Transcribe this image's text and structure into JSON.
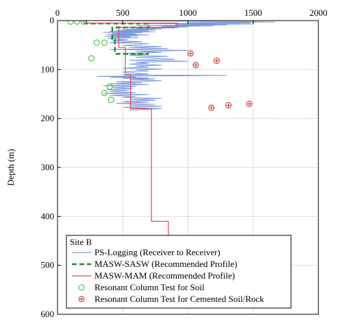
{
  "chart_data": {
    "type": "line",
    "title": "",
    "xlabel": "",
    "ylabel": "Depth (m)",
    "xlim": [
      0,
      2000
    ],
    "ylim": [
      0,
      600
    ],
    "y_inverted": true,
    "x_axis_position": "top",
    "xticks": [
      0,
      500,
      1000,
      1500,
      2000
    ],
    "yticks": [
      0,
      100,
      200,
      300,
      400,
      500,
      600
    ],
    "grid": "dotted",
    "legend": {
      "placement": "bottom-left",
      "title": "Site B",
      "entries": [
        "PS-Logging (Receiver to Receiver)",
        "MASW-SASW (Recommended Profile)",
        "MASW-MAM (Recommended Profile)",
        "Resonant Column Test for Soil",
        "Resonant Column Test for Cemented Soil/Rock"
      ]
    },
    "series": [
      {
        "name": "PS-Logging (Receiver to Receiver)",
        "style": "line",
        "color": "#7B97E0",
        "points": [
          [
            300,
            0
          ],
          [
            900,
            1
          ],
          [
            1400,
            2
          ],
          [
            1670,
            3
          ],
          [
            1000,
            4
          ],
          [
            1480,
            5
          ],
          [
            700,
            6
          ],
          [
            1500,
            7
          ],
          [
            900,
            8
          ],
          [
            1300,
            9
          ],
          [
            600,
            10
          ],
          [
            1200,
            11
          ],
          [
            800,
            12
          ],
          [
            1000,
            13
          ],
          [
            550,
            14
          ],
          [
            900,
            15
          ],
          [
            600,
            16
          ],
          [
            800,
            17
          ],
          [
            500,
            18
          ],
          [
            750,
            19
          ],
          [
            450,
            20
          ],
          [
            700,
            21
          ],
          [
            400,
            22
          ],
          [
            750,
            23
          ],
          [
            350,
            24
          ],
          [
            650,
            25
          ],
          [
            420,
            26
          ],
          [
            600,
            27
          ],
          [
            380,
            28
          ],
          [
            700,
            29
          ],
          [
            420,
            30
          ],
          [
            620,
            31
          ],
          [
            360,
            32
          ],
          [
            560,
            33
          ],
          [
            400,
            34
          ],
          [
            620,
            35
          ],
          [
            380,
            37
          ],
          [
            540,
            39
          ],
          [
            420,
            41
          ],
          [
            650,
            43
          ],
          [
            400,
            45
          ],
          [
            700,
            47
          ],
          [
            600,
            49
          ],
          [
            500,
            51
          ],
          [
            800,
            53
          ],
          [
            550,
            55
          ],
          [
            850,
            57
          ],
          [
            400,
            59
          ],
          [
            1000,
            61
          ],
          [
            600,
            63
          ],
          [
            800,
            65
          ],
          [
            500,
            67
          ],
          [
            700,
            69
          ],
          [
            550,
            71
          ],
          [
            850,
            73
          ],
          [
            600,
            75
          ],
          [
            750,
            77
          ],
          [
            900,
            79
          ],
          [
            550,
            81
          ],
          [
            1000,
            83
          ],
          [
            600,
            85
          ],
          [
            700,
            87
          ],
          [
            550,
            89
          ],
          [
            800,
            91
          ],
          [
            600,
            93
          ],
          [
            700,
            95
          ],
          [
            500,
            97
          ],
          [
            800,
            99
          ],
          [
            600,
            101
          ],
          [
            700,
            103
          ],
          [
            500,
            105
          ],
          [
            550,
            107
          ],
          [
            700,
            109
          ],
          [
            500,
            111
          ],
          [
            1300,
            112
          ],
          [
            800,
            113
          ],
          [
            300,
            114
          ],
          [
            600,
            115
          ],
          [
            400,
            116
          ],
          [
            700,
            117
          ],
          [
            500,
            118
          ],
          [
            750,
            119
          ],
          [
            550,
            121
          ],
          [
            800,
            123
          ],
          [
            450,
            125
          ],
          [
            650,
            127
          ],
          [
            400,
            129
          ],
          [
            700,
            131
          ],
          [
            350,
            133
          ],
          [
            600,
            135
          ],
          [
            420,
            137
          ],
          [
            580,
            139
          ],
          [
            380,
            141
          ],
          [
            550,
            143
          ],
          [
            400,
            145
          ],
          [
            600,
            147
          ],
          [
            350,
            149
          ],
          [
            700,
            151
          ],
          [
            400,
            153
          ],
          [
            600,
            155
          ],
          [
            500,
            157
          ],
          [
            800,
            159
          ],
          [
            550,
            161
          ],
          [
            750,
            163
          ],
          [
            500,
            165
          ],
          [
            700,
            167
          ],
          [
            450,
            169
          ],
          [
            750,
            171
          ],
          [
            550,
            173
          ],
          [
            800,
            175
          ],
          [
            500,
            177
          ],
          [
            800,
            180
          ],
          [
            550,
            183
          ]
        ]
      },
      {
        "name": "MASW-SASW (Recommended Profile)",
        "style": "step",
        "color": "#1E8B2E",
        "points": [
          [
            220,
            0
          ],
          [
            220,
            6
          ],
          [
            700,
            6
          ],
          [
            700,
            14
          ],
          [
            420,
            14
          ],
          [
            420,
            38
          ],
          [
            440,
            38
          ],
          [
            440,
            68
          ],
          [
            700,
            68
          ]
        ]
      },
      {
        "name": "MASW-MAM (Recommended Profile)",
        "style": "step",
        "color": "#E0474C",
        "points": [
          [
            200,
            0
          ],
          [
            200,
            5
          ],
          [
            920,
            5
          ],
          [
            920,
            14
          ],
          [
            470,
            14
          ],
          [
            470,
            55
          ],
          [
            520,
            55
          ],
          [
            520,
            110
          ],
          [
            560,
            110
          ],
          [
            560,
            180
          ],
          [
            720,
            180
          ],
          [
            720,
            410
          ],
          [
            850,
            410
          ],
          [
            850,
            440
          ]
        ]
      },
      {
        "name": "Resonant Column Test for Soil",
        "style": "marker",
        "marker": "circle",
        "color": "#22C02A",
        "points": [
          [
            100,
            2
          ],
          [
            150,
            2
          ],
          [
            200,
            2
          ],
          [
            300,
            45
          ],
          [
            360,
            45
          ],
          [
            260,
            77
          ],
          [
            400,
            135
          ],
          [
            360,
            148
          ],
          [
            410,
            162
          ]
        ]
      },
      {
        "name": "Resonant Column Test for Cemented Soil/Rock",
        "style": "marker",
        "marker": "circle-plus",
        "color": "#CC1F1F",
        "points": [
          [
            1020,
            67
          ],
          [
            1060,
            91
          ],
          [
            1220,
            82
          ],
          [
            1180,
            178
          ],
          [
            1310,
            173
          ],
          [
            1470,
            170
          ]
        ]
      }
    ]
  }
}
